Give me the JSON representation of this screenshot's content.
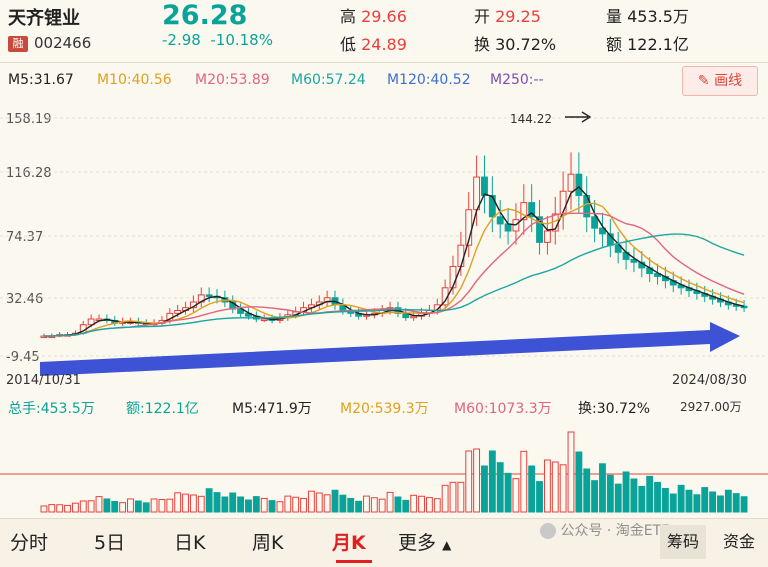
{
  "stock": {
    "name": "天齐锂业",
    "badge": "融",
    "code": "002466",
    "price": "26.28",
    "change": "-2.98",
    "change_pct": "-10.18%",
    "high_label": "高",
    "high": "29.66",
    "low_label": "低",
    "low": "24.89",
    "open_label": "开",
    "open": "29.25",
    "turnover_label": "换",
    "turnover": "30.72%",
    "volume_label": "量",
    "volume": "453.5万",
    "amount_label": "额",
    "amount": "122.1亿"
  },
  "ma": {
    "m5": "M5:31.67",
    "m10": "M10:40.56",
    "m20": "M20:53.89",
    "m60": "M60:57.24",
    "m120": "M120:40.52",
    "m250": "M250:--"
  },
  "draw_button": "画线",
  "price_axis": [
    "158.19",
    "116.28",
    "74.37",
    "32.46",
    "-9.45"
  ],
  "date_start": "2014/10/31",
  "date_end": "2024/08/30",
  "peak_label": "144.22",
  "volume_panel": {
    "total": "总手:453.5万",
    "amount": "额:122.1亿",
    "m5": "M5:471.9万",
    "m20": "M20:539.3万",
    "m60": "M60:1073.3万",
    "turnover": "换:30.72%",
    "max": "2927.00万"
  },
  "tabs": [
    "分时",
    "5日",
    "日K",
    "周K",
    "月K",
    "更多"
  ],
  "active_tab": "月K",
  "right_buttons": [
    "筹码",
    "资金"
  ],
  "watermark": "公众号 · 淘金ETF",
  "colors": {
    "up": "#e8413c",
    "down": "#0aa39a",
    "accent": "#e02020",
    "arrow": "#3d52d5"
  },
  "chart_data": {
    "type": "candlestick",
    "ylim": [
      -9.45,
      158.19
    ],
    "x_range": [
      "2014/10/31",
      "2024/08/30"
    ],
    "peak": 144.22,
    "last_close": 26.28,
    "ma_values": {
      "M5": 31.67,
      "M10": 40.56,
      "M20": 53.89,
      "M60": 57.24,
      "M120": 40.52
    }
  }
}
